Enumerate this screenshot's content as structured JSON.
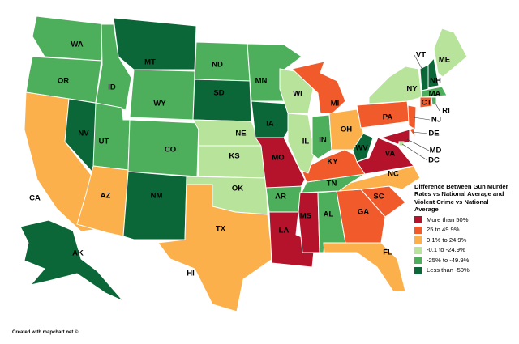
{
  "title": "Difference Between Gun Murder Rates vs National Average and Violent Crime vs National Average",
  "legend": [
    {
      "label": "More than 50%",
      "color": "#b5122b"
    },
    {
      "label": "25 to 49.9%",
      "color": "#f15a2b"
    },
    {
      "label": "0.1% to 24.9%",
      "color": "#fbb04b"
    },
    {
      "label": "-0.1 to -24.9%",
      "color": "#b7e39a"
    },
    {
      "label": "-25% to -49.9%",
      "color": "#4daf5b"
    },
    {
      "label": "Less than -50%",
      "color": "#0b6638"
    }
  ],
  "states": [
    {
      "label": "WA",
      "category": 4
    },
    {
      "label": "OR",
      "category": 4
    },
    {
      "label": "CA",
      "category": 2
    },
    {
      "label": "NV",
      "category": 5
    },
    {
      "label": "ID",
      "category": 4
    },
    {
      "label": "MT",
      "category": 5
    },
    {
      "label": "WY",
      "category": 4
    },
    {
      "label": "UT",
      "category": 4
    },
    {
      "label": "CO",
      "category": 4
    },
    {
      "label": "AZ",
      "category": 2
    },
    {
      "label": "NM",
      "category": 5
    },
    {
      "label": "ND",
      "category": 4
    },
    {
      "label": "SD",
      "category": 5
    },
    {
      "label": "NE",
      "category": 3
    },
    {
      "label": "KS",
      "category": 3
    },
    {
      "label": "OK",
      "category": 3
    },
    {
      "label": "TX",
      "category": 2
    },
    {
      "label": "MN",
      "category": 4
    },
    {
      "label": "IA",
      "category": 5
    },
    {
      "label": "MO",
      "category": 0
    },
    {
      "label": "AR",
      "category": 4
    },
    {
      "label": "LA",
      "category": 0
    },
    {
      "label": "MS",
      "category": 0
    },
    {
      "label": "AL",
      "category": 4
    },
    {
      "label": "GA",
      "category": 1
    },
    {
      "label": "FL",
      "category": 2
    },
    {
      "label": "SC",
      "category": 1
    },
    {
      "label": "NC",
      "category": 2
    },
    {
      "label": "TN",
      "category": 4
    },
    {
      "label": "KY",
      "category": 1
    },
    {
      "label": "WI",
      "category": 3
    },
    {
      "label": "IL",
      "category": 3
    },
    {
      "label": "MI",
      "category": 1
    },
    {
      "label": "IN",
      "category": 4
    },
    {
      "label": "OH",
      "category": 2
    },
    {
      "label": "WV",
      "category": 5
    },
    {
      "label": "VA",
      "category": 0
    },
    {
      "label": "PA",
      "category": 1
    },
    {
      "label": "NY",
      "category": 3
    },
    {
      "label": "NJ",
      "category": 1
    },
    {
      "label": "MD",
      "category": 0
    },
    {
      "label": "DE",
      "category": 1
    },
    {
      "label": "DC",
      "category": 3
    },
    {
      "label": "VT",
      "category": 5
    },
    {
      "label": "NH",
      "category": 5
    },
    {
      "label": "ME",
      "category": 3
    },
    {
      "label": "MA",
      "category": 4
    },
    {
      "label": "CT",
      "category": 1
    },
    {
      "label": "RI",
      "category": 4
    },
    {
      "label": "AK",
      "category": 5
    },
    {
      "label": "HI",
      "category": null
    }
  ],
  "footer": "Created with mapchart.net ©"
}
